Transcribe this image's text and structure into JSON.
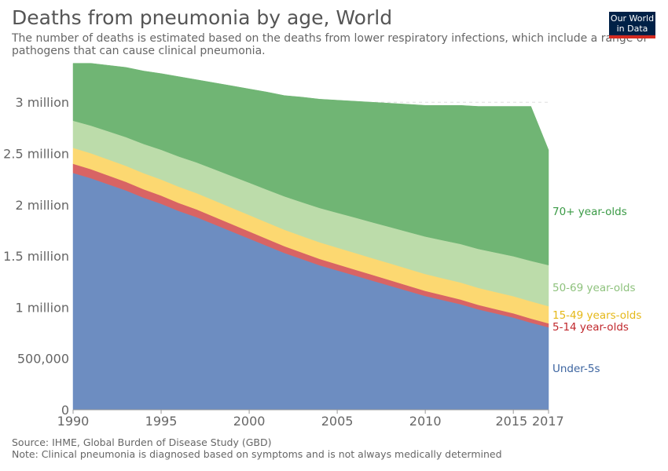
{
  "header": {
    "title": "Deaths from pneumonia by age, World",
    "subtitle_line1": "The number of deaths is estimated based on the deaths from lower respiratory infections, which include a range of",
    "subtitle_line2": "pathogens that can cause clinical pneumonia."
  },
  "logo": {
    "line1": "Our World",
    "line2": "in Data",
    "bg_color": "#002147",
    "accent_color": "#d42b21"
  },
  "footer": {
    "source": "Source: IHME, Global Burden of Disease Study (GBD)",
    "note": "Note: Clinical pneumonia is diagnosed based on symptoms and is not always medically determined"
  },
  "chart_data": {
    "type": "area",
    "stacked": true,
    "x": [
      1990,
      1991,
      1992,
      1993,
      1994,
      1995,
      1996,
      1997,
      1998,
      1999,
      2000,
      2001,
      2002,
      2003,
      2004,
      2005,
      2006,
      2007,
      2008,
      2009,
      2010,
      2011,
      2012,
      2013,
      2014,
      2015,
      2016,
      2017
    ],
    "xlim": [
      1990,
      2017
    ],
    "x_ticks": [
      1990,
      1995,
      2000,
      2005,
      2010,
      2015,
      2017
    ],
    "ylim": [
      0,
      3400000
    ],
    "y_ticks": [
      0,
      500000,
      1000000,
      1500000,
      2000000,
      2500000,
      3000000
    ],
    "y_tick_labels": [
      "0",
      "500,000",
      "1 million",
      "1.5 million",
      "2 million",
      "2.5 million",
      "3 million"
    ],
    "grid": "horizontal-dotted",
    "legend": "right-inline",
    "series": [
      {
        "name": "Under-5s",
        "color": "#6d8dc1",
        "label_color": "#3c64a0",
        "values": [
          2310000,
          2260000,
          2200000,
          2140000,
          2070000,
          2010000,
          1940000,
          1880000,
          1810000,
          1740000,
          1670000,
          1600000,
          1530000,
          1470000,
          1410000,
          1360000,
          1310000,
          1260000,
          1210000,
          1160000,
          1110000,
          1070000,
          1030000,
          980000,
          940000,
          900000,
          850000,
          805000
        ]
      },
      {
        "name": "5-14 year-olds",
        "color": "#d86464",
        "label_color": "#c0282d",
        "values": [
          90000,
          88000,
          86000,
          84000,
          82000,
          80000,
          78000,
          76000,
          74000,
          72000,
          70000,
          68000,
          66000,
          64000,
          62000,
          60000,
          58000,
          56000,
          54000,
          52000,
          50000,
          48000,
          46000,
          44000,
          42000,
          41000,
          40000,
          38000
        ]
      },
      {
        "name": "15-49 years-olds",
        "color": "#fcd871",
        "label_color": "#e5b818",
        "values": [
          155000,
          155000,
          156000,
          156000,
          157000,
          157000,
          158000,
          158000,
          159000,
          159000,
          160000,
          160000,
          161000,
          161000,
          162000,
          162000,
          163000,
          163000,
          164000,
          164000,
          165000,
          165000,
          166000,
          166000,
          167000,
          167000,
          168000,
          168000
        ]
      },
      {
        "name": "50-69 year-olds",
        "color": "#bcdcaa",
        "label_color": "#8ec27d",
        "values": [
          265000,
          270000,
          275000,
          280000,
          285000,
          290000,
          295000,
          300000,
          305000,
          310000,
          315000,
          320000,
          325000,
          330000,
          335000,
          340000,
          345000,
          350000,
          355000,
          360000,
          365000,
          370000,
          375000,
          380000,
          385000,
          390000,
          395000,
          400000
        ]
      },
      {
        "name": "70+ year-olds",
        "color": "#70b574",
        "label_color": "#3a9a45",
        "values": [
          560000,
          607000,
          643000,
          680000,
          711000,
          743000,
          779000,
          806000,
          842000,
          879000,
          915000,
          952000,
          983000,
          1025000,
          1061000,
          1098000,
          1134000,
          1171000,
          1207000,
          1244000,
          1280000,
          1317000,
          1353000,
          1390000,
          1426000,
          1462000,
          1507000,
          1124000
        ]
      }
    ]
  }
}
